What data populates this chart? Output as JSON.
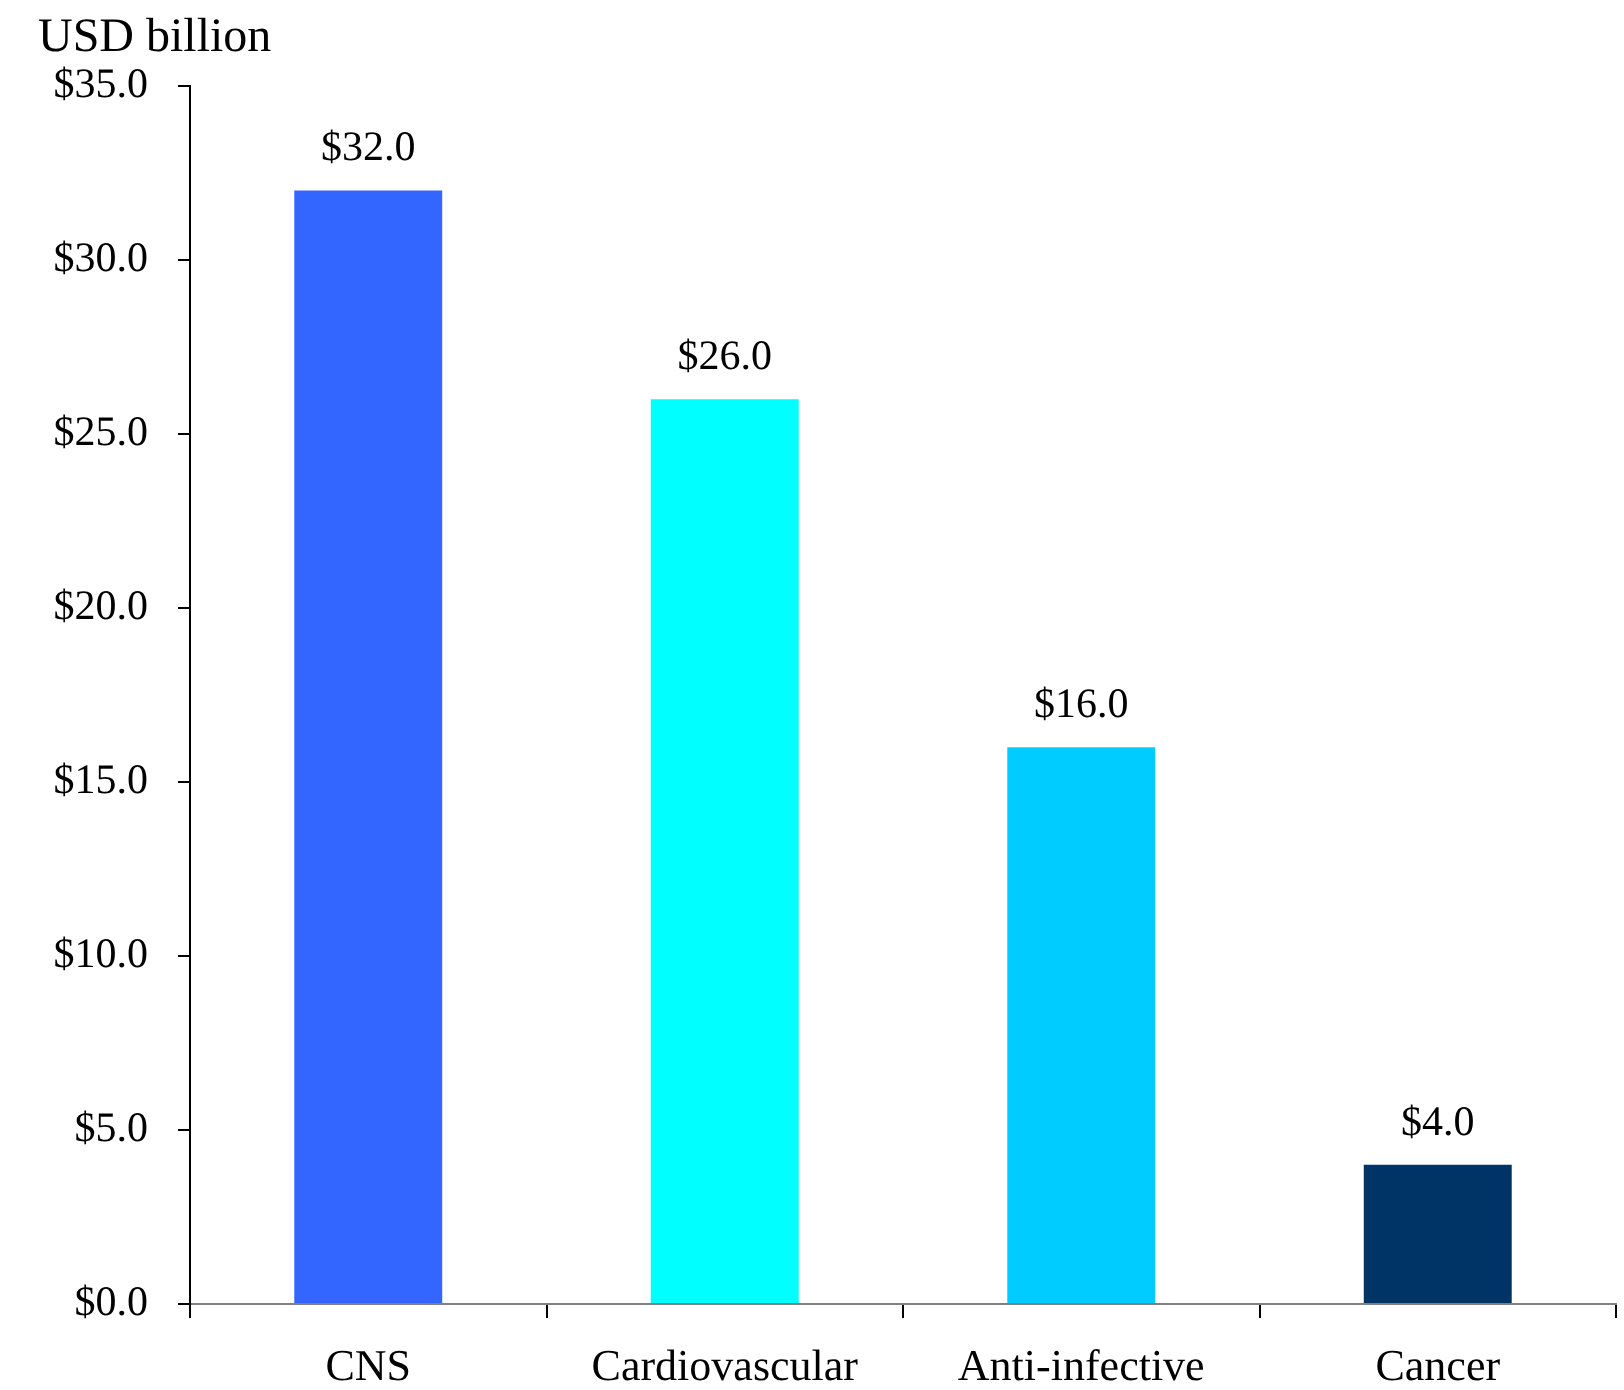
{
  "chart_data": {
    "type": "bar",
    "ylabel": "USD billion",
    "categories": [
      "CNS",
      "Cardiovascular",
      "Anti-infective",
      "Cancer"
    ],
    "values": [
      32.0,
      26.0,
      16.0,
      4.0
    ],
    "colors": [
      "#3366ff",
      "#00ffff",
      "#00ccff",
      "#003366"
    ],
    "value_labels": [
      "$32.0",
      "$26.0",
      "$16.0",
      "$4.0"
    ],
    "ylim": [
      0,
      35
    ],
    "yticks": [
      {
        "value": 0,
        "label": "$0.0"
      },
      {
        "value": 5,
        "label": "$5.0"
      },
      {
        "value": 10,
        "label": "$10.0"
      },
      {
        "value": 15,
        "label": "$15.0"
      },
      {
        "value": 20,
        "label": "$20.0"
      },
      {
        "value": 25,
        "label": "$25.0"
      },
      {
        "value": 30,
        "label": "$30.0"
      },
      {
        "value": 35,
        "label": "$35.0"
      }
    ]
  }
}
